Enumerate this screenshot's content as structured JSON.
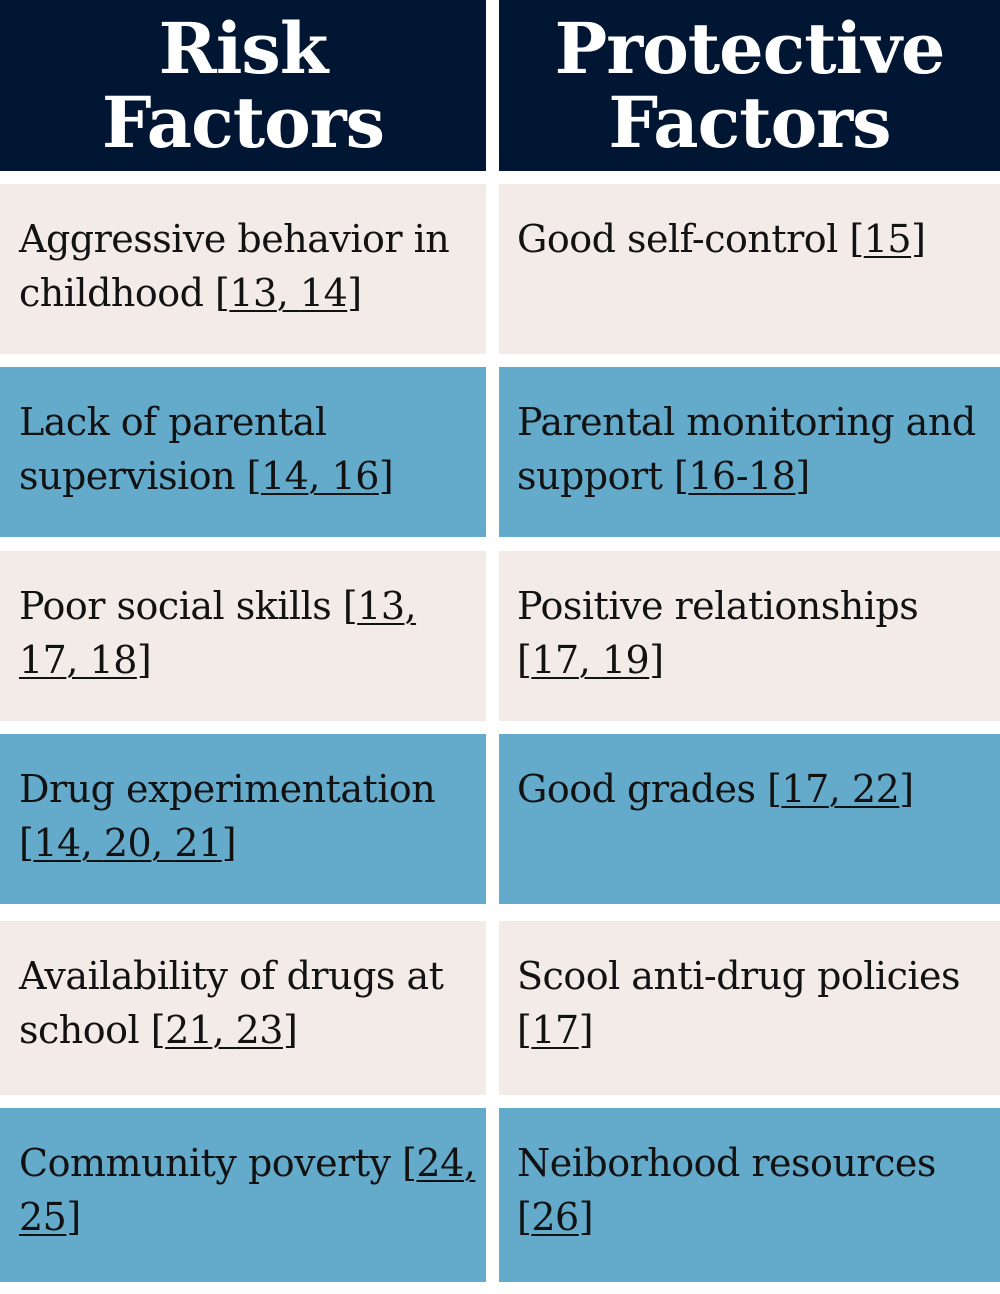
{
  "headers": {
    "risk_line1": "Risk",
    "risk_line2": "Factors",
    "protective_line1": "Protective",
    "protective_line2": "Factors"
  },
  "rows": [
    {
      "risk": {
        "text": "Aggressive behavior in childhood ",
        "open": "[",
        "refs": [
          "13",
          "14"
        ],
        "close": "]"
      },
      "protective": {
        "text": "Good self-control ",
        "open": "[",
        "refs": [
          "15"
        ],
        "close": "]"
      }
    },
    {
      "risk": {
        "text": "Lack of parental supervision ",
        "open": "[",
        "refs": [
          "14",
          "16"
        ],
        "close": "]"
      },
      "protective": {
        "text": "Parental monitoring and support ",
        "open": "[",
        "refs": [
          "16-18"
        ],
        "close": "]"
      }
    },
    {
      "risk": {
        "text": "Poor social skills ",
        "open": "[",
        "refs": [
          "13",
          "17",
          "18"
        ],
        "close": "]"
      },
      "protective": {
        "text": "Positive relationships ",
        "open": "[",
        "refs": [
          "17",
          "19"
        ],
        "close": "]"
      }
    },
    {
      "risk": {
        "text": "Drug experimentation ",
        "open": "[",
        "refs": [
          "14",
          "20",
          "21"
        ],
        "close": "]"
      },
      "protective": {
        "text": "Good grades ",
        "open": "[",
        "refs": [
          "17",
          "22"
        ],
        "close": "]"
      }
    },
    {
      "risk": {
        "text": "Availability of drugs at school ",
        "open": "[",
        "refs": [
          "21",
          "23"
        ],
        "close": "]"
      },
      "protective": {
        "text": "Scool anti-drug policies ",
        "open": "[",
        "refs": [
          "17"
        ],
        "close": "]"
      }
    },
    {
      "risk": {
        "text": "Community poverty ",
        "open": "[",
        "refs": [
          "24",
          "25"
        ],
        "close": "]"
      },
      "protective": {
        "text": "Neiborhood resources ",
        "open": "[",
        "refs": [
          "26"
        ],
        "close": "]"
      }
    }
  ],
  "colors": {
    "header_bg": "#011632",
    "row_light": "#f2ebe8",
    "row_blue": "#63aacb",
    "text": "#121212"
  }
}
